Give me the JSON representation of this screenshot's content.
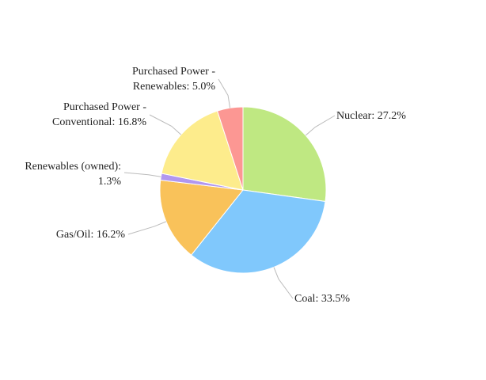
{
  "chart_data": {
    "type": "pie",
    "categories": [
      "Nuclear",
      "Coal",
      "Gas/Oil",
      "Renewables (owned)",
      "Purchased Power - Conventional",
      "Purchased Power - Renewables"
    ],
    "values": [
      27.2,
      33.5,
      16.2,
      1.3,
      16.8,
      5.0
    ],
    "value_labels": [
      "27.2%",
      "33.5%",
      "16.2%",
      "1.3%",
      "16.8%",
      "5.0%"
    ],
    "colors": [
      "#bfe882",
      "#80c8fc",
      "#f9c25a",
      "#b197f0",
      "#fdec8c",
      "#fc9793"
    ]
  }
}
